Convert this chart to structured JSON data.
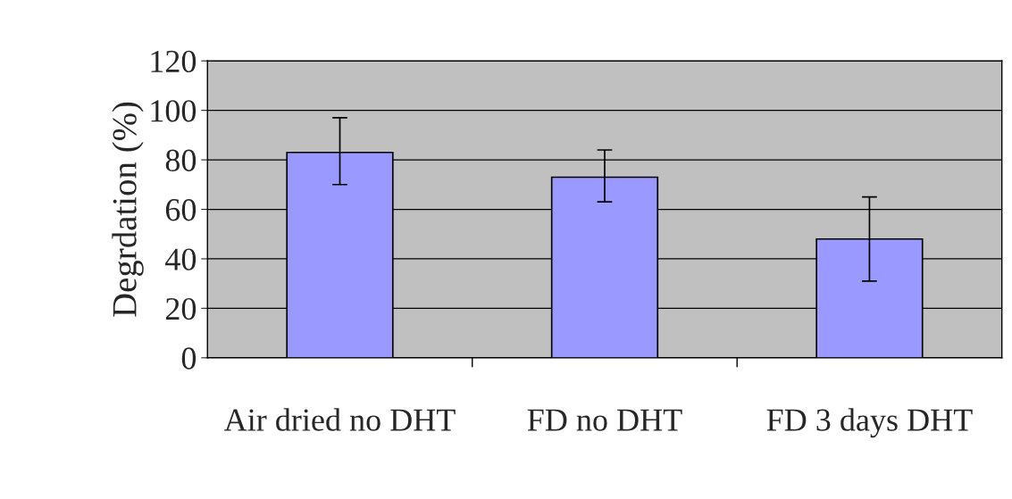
{
  "chart_data": {
    "type": "bar",
    "ylabel": "Degrdation (%)",
    "categories": [
      "Air dried no DHT",
      "FD no DHT",
      "FD 3 days DHT"
    ],
    "values": [
      83,
      73,
      48
    ],
    "errors": [
      [
        70,
        97
      ],
      [
        63,
        84
      ],
      [
        31,
        65
      ]
    ],
    "color": "#9999ff",
    "ylim": [
      0,
      120
    ],
    "yticks": [
      0,
      20,
      40,
      60,
      80,
      100,
      120
    ],
    "grid": "y"
  }
}
